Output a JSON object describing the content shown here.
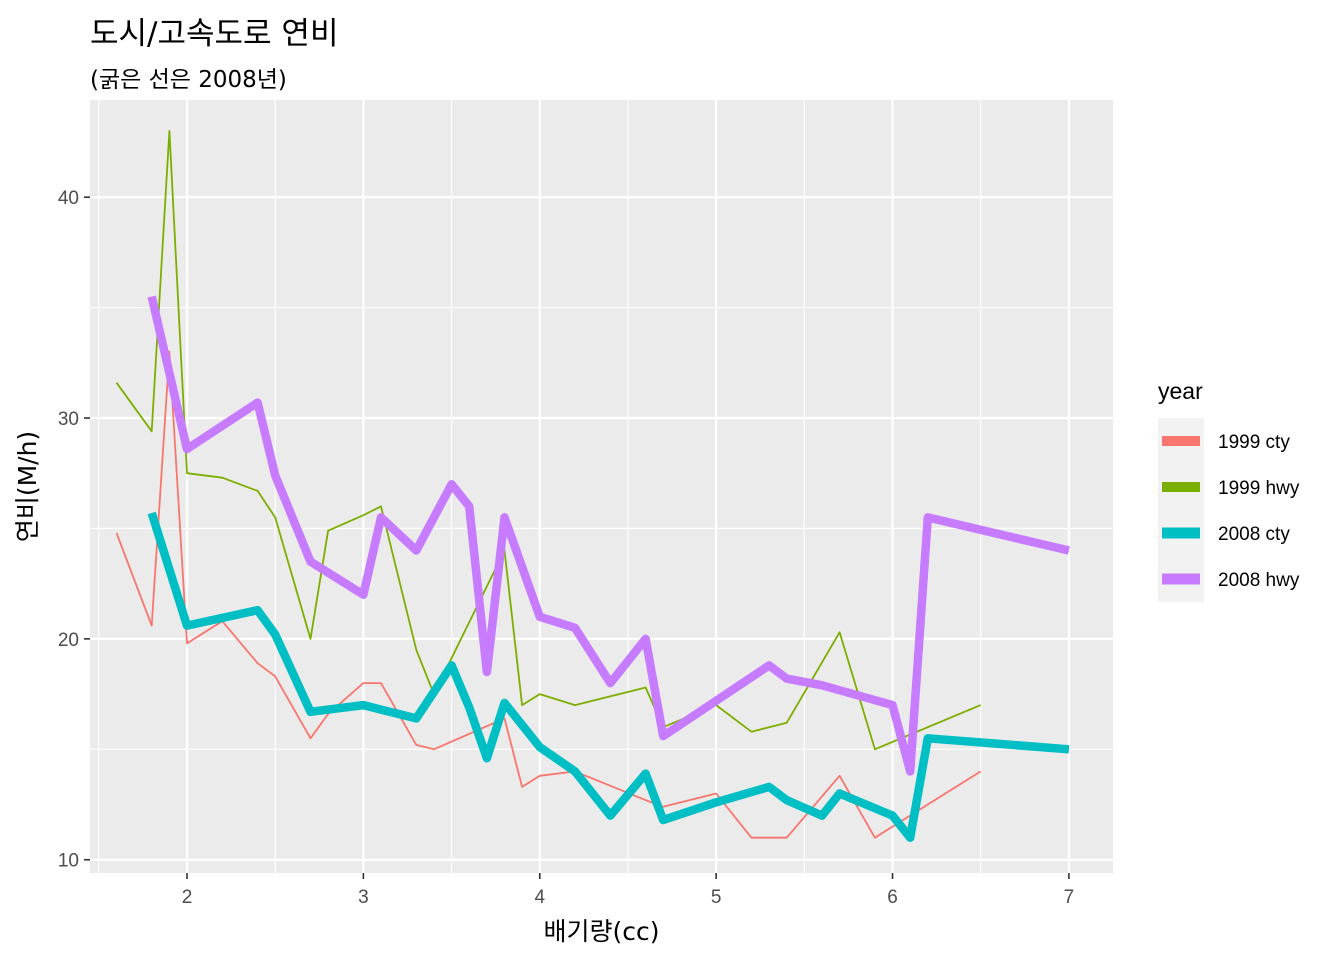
{
  "title": "도시/고속도로 연비",
  "subtitle": "(굵은 선은 2008년)",
  "chart_data": {
    "type": "line",
    "title": "도시/고속도로 연비",
    "subtitle": "(굵은 선은 2008년)",
    "xlabel": "배기량(cc)",
    "ylabel": "연비(M/h)",
    "xlim": [
      1.45,
      7.25
    ],
    "ylim": [
      9.4,
      44.4
    ],
    "x_ticks": [
      "2",
      "3",
      "4",
      "5",
      "6",
      "7"
    ],
    "y_ticks": [
      "10",
      "20",
      "30",
      "40"
    ],
    "grid": true,
    "legend": {
      "title": "year",
      "position": "right"
    },
    "series": [
      {
        "name": "1999 cty",
        "color": "#F8766D",
        "thick": false,
        "points": [
          [
            1.6,
            24.8
          ],
          [
            1.8,
            20.6
          ],
          [
            1.9,
            33
          ],
          [
            2.0,
            19.8
          ],
          [
            2.2,
            20.8
          ],
          [
            2.4,
            18.9
          ],
          [
            2.5,
            18.3
          ],
          [
            2.7,
            15.5
          ],
          [
            2.8,
            16.6
          ],
          [
            3.0,
            18.0
          ],
          [
            3.1,
            18.0
          ],
          [
            3.3,
            15.2
          ],
          [
            3.4,
            15.0
          ],
          [
            3.8,
            16.4
          ],
          [
            3.9,
            13.3
          ],
          [
            4.0,
            13.8
          ],
          [
            4.2,
            14.0
          ],
          [
            4.6,
            12.7
          ],
          [
            4.7,
            12.4
          ],
          [
            5.0,
            13.0
          ],
          [
            5.2,
            11.0
          ],
          [
            5.4,
            11.0
          ],
          [
            5.7,
            13.8
          ],
          [
            5.9,
            11.0
          ],
          [
            6.5,
            14.0
          ]
        ]
      },
      {
        "name": "1999 hwy",
        "color": "#7CAE00",
        "thick": false,
        "points": [
          [
            1.6,
            31.6
          ],
          [
            1.8,
            29.4
          ],
          [
            1.9,
            43
          ],
          [
            2.0,
            27.5
          ],
          [
            2.2,
            27.3
          ],
          [
            2.4,
            26.7
          ],
          [
            2.5,
            25.5
          ],
          [
            2.7,
            20.0
          ],
          [
            2.8,
            24.9
          ],
          [
            3.0,
            25.6
          ],
          [
            3.1,
            26.0
          ],
          [
            3.3,
            19.5
          ],
          [
            3.4,
            17.5
          ],
          [
            3.8,
            24.0
          ],
          [
            3.9,
            17.0
          ],
          [
            4.0,
            17.5
          ],
          [
            4.2,
            17.0
          ],
          [
            4.6,
            17.8
          ],
          [
            4.7,
            16.0
          ],
          [
            5.0,
            17.0
          ],
          [
            5.2,
            15.8
          ],
          [
            5.4,
            16.2
          ],
          [
            5.7,
            20.3
          ],
          [
            5.9,
            15.0
          ],
          [
            6.5,
            17.0
          ]
        ]
      },
      {
        "name": "2008 cty",
        "color": "#00BFC4",
        "thick": true,
        "points": [
          [
            1.8,
            25.7
          ],
          [
            2.0,
            20.6
          ],
          [
            2.4,
            21.3
          ],
          [
            2.5,
            20.2
          ],
          [
            2.7,
            16.7
          ],
          [
            3.0,
            17.0
          ],
          [
            3.1,
            16.8
          ],
          [
            3.3,
            16.4
          ],
          [
            3.5,
            18.8
          ],
          [
            3.6,
            16.9
          ],
          [
            3.7,
            14.6
          ],
          [
            3.8,
            17.1
          ],
          [
            4.0,
            15.1
          ],
          [
            4.2,
            14.0
          ],
          [
            4.4,
            12.0
          ],
          [
            4.6,
            13.9
          ],
          [
            4.7,
            11.8
          ],
          [
            5.0,
            12.6
          ],
          [
            5.3,
            13.3
          ],
          [
            5.4,
            12.7
          ],
          [
            5.6,
            12.0
          ],
          [
            5.7,
            13.0
          ],
          [
            6.0,
            12.0
          ],
          [
            6.1,
            11.0
          ],
          [
            6.2,
            15.5
          ],
          [
            7.0,
            15.0
          ]
        ]
      },
      {
        "name": "2008 hwy",
        "color": "#C77CFF",
        "thick": true,
        "points": [
          [
            1.8,
            35.5
          ],
          [
            2.0,
            28.6
          ],
          [
            2.4,
            30.7
          ],
          [
            2.5,
            27.4
          ],
          [
            2.7,
            23.5
          ],
          [
            3.0,
            22.0
          ],
          [
            3.1,
            25.5
          ],
          [
            3.3,
            24.0
          ],
          [
            3.5,
            27.0
          ],
          [
            3.6,
            26.0
          ],
          [
            3.7,
            18.5
          ],
          [
            3.8,
            25.5
          ],
          [
            4.0,
            21.0
          ],
          [
            4.2,
            20.5
          ],
          [
            4.4,
            18.0
          ],
          [
            4.6,
            20.0
          ],
          [
            4.7,
            15.6
          ],
          [
            5.3,
            18.8
          ],
          [
            5.4,
            18.2
          ],
          [
            5.6,
            17.9
          ],
          [
            6.0,
            17.0
          ],
          [
            6.1,
            14.0
          ],
          [
            6.2,
            25.5
          ],
          [
            7.0,
            24.0
          ]
        ]
      }
    ]
  }
}
